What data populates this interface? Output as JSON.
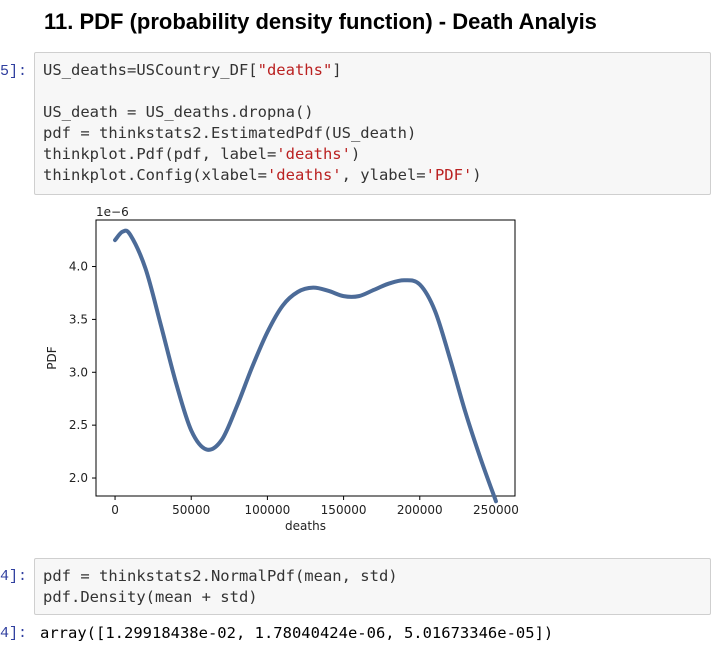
{
  "heading": "11. PDF (probability density function) - Death Analyis",
  "cell1": {
    "prompt": "5]:",
    "lines": [
      [
        {
          "t": "US_deaths=USCountry_DF["
        },
        {
          "t": "\"deaths\"",
          "s": "str"
        },
        {
          "t": "]"
        }
      ],
      [
        {
          "t": ""
        }
      ],
      [
        {
          "t": "US_death = US_deaths.dropna()"
        }
      ],
      [
        {
          "t": "pdf = thinkstats2.EstimatedPdf(US_death)"
        }
      ],
      [
        {
          "t": "thinkplot.Pdf(pdf, label="
        },
        {
          "t": "'deaths'",
          "s": "str"
        },
        {
          "t": ")"
        }
      ],
      [
        {
          "t": "thinkplot.Config(xlabel="
        },
        {
          "t": "'deaths'",
          "s": "str"
        },
        {
          "t": ", ylabel="
        },
        {
          "t": "'PDF'",
          "s": "str"
        },
        {
          "t": ")"
        }
      ]
    ]
  },
  "chart_data": {
    "type": "line",
    "title": "",
    "xlabel": "deaths",
    "ylabel": "PDF",
    "offset_text": "1e−6",
    "xlim": [
      -12500,
      262500
    ],
    "ylim": [
      1.83,
      4.44
    ],
    "xticks": [
      0,
      50000,
      100000,
      150000,
      200000,
      250000
    ],
    "xtick_labels": [
      "0",
      "50000",
      "100000",
      "150000",
      "200000",
      "250000"
    ],
    "yticks": [
      2.0,
      2.5,
      3.0,
      3.5,
      4.0
    ],
    "ytick_labels": [
      "2.0",
      "2.5",
      "3.0",
      "3.5",
      "4.0"
    ],
    "grid": false,
    "line_color": "#4c6b98",
    "series": [
      {
        "x": [
          0,
          5000,
          10000,
          20000,
          30000,
          40000,
          50000,
          60000,
          70000,
          80000,
          90000,
          100000,
          110000,
          120000,
          130000,
          140000,
          150000,
          160000,
          170000,
          180000,
          190000,
          200000,
          210000,
          220000,
          230000,
          240000,
          250000
        ],
        "values": [
          4.25,
          4.33,
          4.3,
          3.98,
          3.45,
          2.9,
          2.45,
          2.27,
          2.36,
          2.68,
          3.05,
          3.38,
          3.63,
          3.76,
          3.8,
          3.77,
          3.72,
          3.72,
          3.78,
          3.84,
          3.87,
          3.83,
          3.58,
          3.12,
          2.62,
          2.18,
          1.78
        ]
      }
    ]
  },
  "cell2": {
    "prompt": "4]:",
    "lines": [
      [
        {
          "t": "pdf = thinkstats2.NormalPdf(mean, std)"
        }
      ],
      [
        {
          "t": "pdf.Density(mean + std)"
        }
      ]
    ]
  },
  "output2": {
    "prompt": "4]:",
    "text": "array([1.29918438e-02, 1.78040424e-06, 5.01673346e-05])"
  }
}
